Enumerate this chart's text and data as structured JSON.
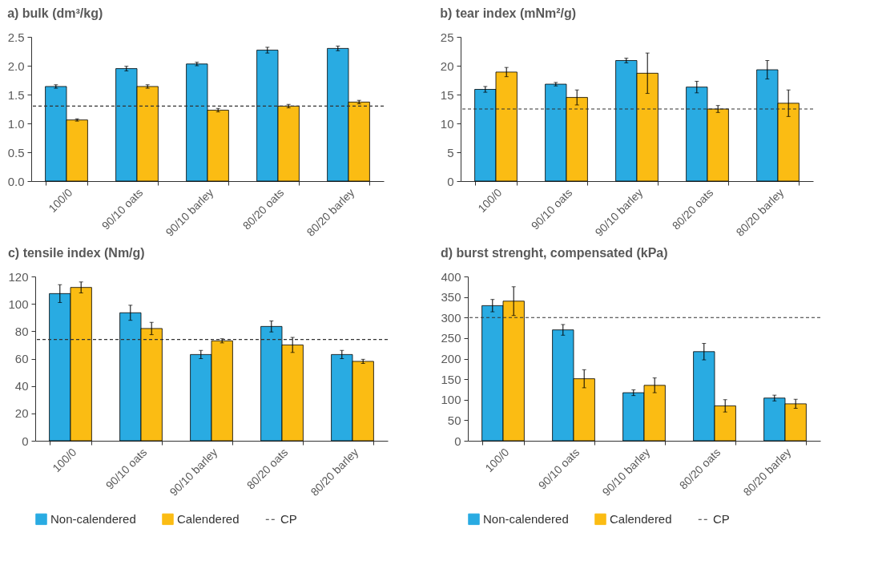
{
  "chart_data": [
    {
      "type": "bar",
      "title": "a) bulk (dm³/kg)",
      "categories": [
        "100/0",
        "90/10 oats",
        "90/10 barley",
        "80/20 oats",
        "80/20 barley"
      ],
      "series": [
        {
          "color": "#29abe2",
          "values": [
            1.64,
            1.95,
            2.03,
            2.27,
            2.3
          ],
          "errors": [
            0.03,
            0.04,
            0.03,
            0.05,
            0.04
          ]
        },
        {
          "color": "#fbbc13",
          "values": [
            1.06,
            1.64,
            1.23,
            1.3,
            1.37
          ],
          "errors": [
            0.02,
            0.03,
            0.03,
            0.03,
            0.03
          ]
        }
      ],
      "ylim": [
        0,
        2.5
      ],
      "yticks": [
        {
          "value": 0,
          "label": "0.0"
        },
        {
          "value": 0.5,
          "label": "0.5"
        },
        {
          "value": 1,
          "label": "1.0"
        },
        {
          "value": 1.5,
          "label": "1.5"
        },
        {
          "value": 2,
          "label": "2.0"
        },
        {
          "value": 2.5,
          "label": "2.5"
        }
      ],
      "ref_lines": [
        {
          "axis": "y",
          "value": 1.3,
          "color": "#333333",
          "line_style": "dashed"
        }
      ],
      "grid": false,
      "legend": false
    },
    {
      "type": "bar",
      "title": "b) tear index (mNm²/g)",
      "categories": [
        "100/0",
        "90/10 oats",
        "90/10 barley",
        "80/20 oats",
        "80/20 barley"
      ],
      "series": [
        {
          "color": "#29abe2",
          "values": [
            15.9,
            16.8,
            20.9,
            16.3,
            19.3
          ],
          "errors": [
            0.5,
            0.3,
            0.4,
            1,
            1.6
          ]
        },
        {
          "color": "#fbbc13",
          "values": [
            18.9,
            14.5,
            18.7,
            12.5,
            13.5
          ],
          "errors": [
            0.8,
            1.3,
            3.5,
            0.6,
            2.3
          ]
        }
      ],
      "ylim": [
        0,
        25
      ],
      "yticks": [
        0,
        5,
        10,
        15,
        20,
        25
      ],
      "ref_lines": [
        {
          "axis": "y",
          "value": 12.5,
          "color": "#333333",
          "line_style": "dashed"
        }
      ],
      "grid": false,
      "legend": false
    },
    {
      "type": "bar",
      "title": "c) tensile index (Nm/g)",
      "categories": [
        "100/0",
        "90/10 oats",
        "90/10 barley",
        "80/20 oats",
        "80/20 barley"
      ],
      "series": [
        {
          "name": "Non-calendered",
          "color": "#29abe2",
          "values": [
            107.5,
            93.5,
            63,
            83.5,
            63
          ],
          "errors": [
            6.5,
            5.5,
            3,
            4,
            3
          ]
        },
        {
          "name": "Calendered",
          "color": "#fbbc13",
          "values": [
            112,
            82,
            73,
            70,
            58
          ],
          "errors": [
            4,
            4.5,
            1.5,
            5.5,
            1.5
          ]
        }
      ],
      "ylim": [
        0,
        120
      ],
      "yticks": [
        0,
        20,
        40,
        60,
        80,
        100,
        120
      ],
      "ref_lines": [
        {
          "axis": "y",
          "value": 74,
          "label": "CP",
          "color": "#333333",
          "line_style": "dashed"
        }
      ],
      "grid": false,
      "legend": "bottom"
    },
    {
      "type": "bar",
      "title": "d) burst strenght, compensated (kPa)",
      "categories": [
        "100/0",
        "90/10 oats",
        "90/10 barley",
        "80/20 oats",
        "80/20 barley"
      ],
      "series": [
        {
          "name": "Non-calendered",
          "color": "#29abe2",
          "values": [
            329,
            270,
            117,
            217,
            104
          ],
          "errors": [
            15,
            13,
            7,
            20,
            7
          ]
        },
        {
          "name": "Calendered",
          "color": "#fbbc13",
          "values": [
            340,
            151,
            135,
            85,
            90
          ],
          "errors": [
            35,
            22,
            18,
            15,
            11
          ]
        }
      ],
      "ylim": [
        0,
        400
      ],
      "yticks": [
        0,
        50,
        100,
        150,
        200,
        250,
        300,
        350,
        400
      ],
      "ref_lines": [
        {
          "axis": "y",
          "value": 300,
          "label": "CP",
          "color": "#333333",
          "line_style": "dashed"
        }
      ],
      "grid": false,
      "legend": "bottom"
    }
  ]
}
